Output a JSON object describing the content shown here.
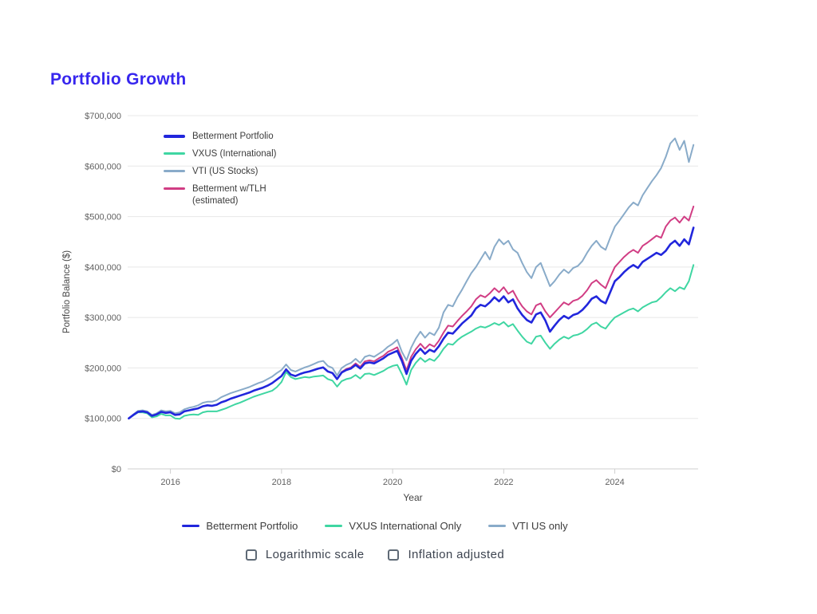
{
  "title": "Portfolio Growth",
  "chart_data": {
    "type": "line",
    "title": "Portfolio Growth",
    "xlabel": "Year",
    "ylabel": "Portfolio Balance ($)",
    "values_unit": "USD thousands",
    "x_start": 2015.25,
    "x_step": 0.0833333,
    "xlim": [
      2015.23,
      2025.5
    ],
    "ylim": [
      0,
      700
    ],
    "grid": "horizontal",
    "legend_position": "inside-top-left",
    "x_ticks": [
      {
        "v": 2016,
        "label": "2016"
      },
      {
        "v": 2018,
        "label": "2018"
      },
      {
        "v": 2020,
        "label": "2020"
      },
      {
        "v": 2022,
        "label": "2022"
      },
      {
        "v": 2024,
        "label": "2024"
      }
    ],
    "y_ticks": [
      {
        "v": 0,
        "label": "$0"
      },
      {
        "v": 100,
        "label": "$100,000"
      },
      {
        "v": 200,
        "label": "$200,000"
      },
      {
        "v": 300,
        "label": "$300,000"
      },
      {
        "v": 400,
        "label": "$400,000"
      },
      {
        "v": 500,
        "label": "$500,000"
      },
      {
        "v": 600,
        "label": "$600,000"
      },
      {
        "v": 700,
        "label": "$700,000"
      }
    ],
    "series": [
      {
        "name": "VTI (US Stocks)",
        "color": "#89abc9",
        "stroke_width": 2,
        "start_index": 0,
        "values": [
          100,
          108,
          115,
          116,
          114,
          107,
          110,
          116,
          114,
          115,
          110,
          112,
          118,
          121,
          123,
          126,
          131,
          133,
          133,
          136,
          142,
          146,
          150,
          153,
          156,
          159,
          162,
          166,
          170,
          173,
          178,
          183,
          190,
          196,
          207,
          196,
          193,
          197,
          201,
          204,
          208,
          212,
          214,
          204,
          200,
          185,
          200,
          206,
          210,
          218,
          210,
          222,
          225,
          222,
          228,
          234,
          242,
          248,
          256,
          232,
          215,
          240,
          258,
          272,
          260,
          270,
          265,
          280,
          310,
          325,
          322,
          340,
          355,
          372,
          388,
          400,
          415,
          430,
          415,
          440,
          455,
          445,
          452,
          435,
          428,
          408,
          390,
          378,
          400,
          408,
          385,
          362,
          372,
          385,
          395,
          388,
          398,
          402,
          412,
          428,
          442,
          452,
          440,
          434,
          458,
          480,
          492,
          505,
          518,
          528,
          522,
          542,
          556,
          570,
          582,
          596,
          618,
          645,
          655,
          632,
          650,
          608,
          642
        ]
      },
      {
        "name": "VXUS (International)",
        "color": "#3fd6a2",
        "stroke_width": 2,
        "start_index": 0,
        "values": [
          100,
          106,
          112,
          112,
          110,
          102,
          104,
          109,
          106,
          106,
          100,
          99,
          105,
          107,
          108,
          107,
          112,
          114,
          114,
          114,
          117,
          120,
          124,
          128,
          131,
          135,
          139,
          143,
          146,
          149,
          152,
          155,
          162,
          172,
          192,
          182,
          178,
          180,
          182,
          181,
          183,
          184,
          185,
          178,
          175,
          163,
          174,
          178,
          180,
          186,
          179,
          188,
          189,
          186,
          190,
          194,
          200,
          204,
          206,
          188,
          167,
          196,
          210,
          220,
          212,
          218,
          214,
          224,
          238,
          248,
          246,
          255,
          262,
          267,
          272,
          278,
          282,
          280,
          284,
          289,
          285,
          291,
          282,
          287,
          274,
          262,
          252,
          248,
          262,
          264,
          250,
          238,
          248,
          256,
          262,
          258,
          264,
          266,
          270,
          277,
          286,
          290,
          282,
          278,
          290,
          300,
          305,
          310,
          315,
          318,
          312,
          320,
          325,
          330,
          332,
          340,
          350,
          358,
          352,
          360,
          356,
          372,
          404
        ]
      },
      {
        "name": "Betterment w/TLH (estimated)",
        "color": "#d13d84",
        "stroke_width": 2,
        "start_index": 45,
        "values": [
          178,
          192,
          198,
          201,
          209,
          202,
          213,
          215,
          213,
          219,
          224,
          232,
          236,
          241,
          220,
          195,
          222,
          237,
          248,
          238,
          247,
          242,
          254,
          270,
          284,
          282,
          293,
          303,
          312,
          322,
          336,
          344,
          340,
          348,
          358,
          350,
          360,
          347,
          353,
          336,
          322,
          312,
          306,
          324,
          328,
          312,
          300,
          310,
          320,
          330,
          325,
          333,
          336,
          343,
          354,
          368,
          374,
          365,
          358,
          380,
          400,
          410,
          420,
          428,
          434,
          428,
          442,
          448,
          455,
          462,
          458,
          480,
          492,
          498,
          488,
          500,
          492,
          520
        ]
      },
      {
        "name": "Betterment Portfolio",
        "color": "#2126dc",
        "stroke_width": 2.6,
        "start_index": 0,
        "values": [
          100,
          107,
          113,
          114,
          112,
          105,
          108,
          113,
          111,
          112,
          107,
          108,
          114,
          116,
          118,
          120,
          124,
          126,
          125,
          127,
          132,
          135,
          139,
          142,
          145,
          148,
          151,
          155,
          158,
          161,
          165,
          170,
          177,
          184,
          197,
          187,
          184,
          188,
          191,
          193,
          196,
          199,
          201,
          193,
          190,
          178,
          191,
          196,
          199,
          206,
          199,
          209,
          211,
          209,
          214,
          219,
          226,
          230,
          234,
          214,
          188,
          214,
          228,
          238,
          228,
          236,
          232,
          243,
          258,
          270,
          268,
          278,
          288,
          296,
          304,
          318,
          325,
          322,
          330,
          340,
          332,
          342,
          330,
          336,
          318,
          305,
          295,
          290,
          306,
          310,
          294,
          272,
          284,
          295,
          303,
          298,
          305,
          308,
          315,
          325,
          337,
          342,
          333,
          328,
          350,
          372,
          380,
          390,
          398,
          404,
          398,
          410,
          416,
          422,
          428,
          424,
          432,
          445,
          452,
          442,
          455,
          445,
          478
        ]
      }
    ]
  },
  "legend_top": [
    {
      "label": "Betterment Portfolio",
      "color": "#2126dc",
      "thickness": 4
    },
    {
      "label": "VXUS (International)",
      "color": "#3fd6a2",
      "thickness": 3
    },
    {
      "label": "VTI (US Stocks)",
      "color": "#89abc9",
      "thickness": 3
    },
    {
      "label": "Betterment w/TLH\n(estimated)",
      "color": "#d13d84",
      "thickness": 3
    }
  ],
  "legend_bottom": [
    {
      "label": "Betterment Portfolio",
      "color": "#2126dc",
      "thickness": 3.5
    },
    {
      "label": "VXUS International Only",
      "color": "#3fd6a2",
      "thickness": 2.5
    },
    {
      "label": "VTI US only",
      "color": "#89abc9",
      "thickness": 2.5
    }
  ],
  "controls": {
    "checkboxes": [
      {
        "label": "Logarithmic scale",
        "checked": false
      },
      {
        "label": "Inflation adjusted",
        "checked": false
      }
    ]
  },
  "colors": {
    "title": "#3726ee",
    "tick_label": "#616161",
    "axis_title": "#444444",
    "gridline": "#e8e8e8",
    "axis_line": "#cfcfcf"
  }
}
